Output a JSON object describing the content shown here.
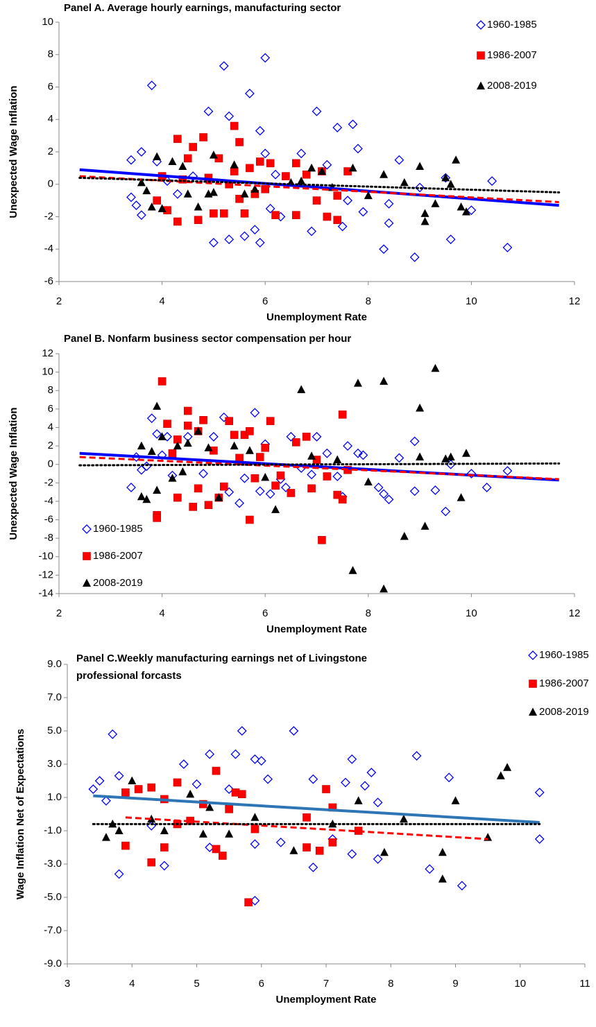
{
  "chart_data": [
    {
      "type": "scatter",
      "title": [
        "Panel A. Average hourly earnings, manufacturing sector"
      ],
      "x_label": "Unemployment Rate",
      "y_label": "Unexpected Wage Inflation",
      "xlim": [
        2,
        12
      ],
      "xticks": [
        2,
        4,
        6,
        8,
        10,
        12
      ],
      "ylim": [
        -6,
        10
      ],
      "yticks": [
        -6,
        -4,
        -2,
        0,
        2,
        4,
        6,
        8,
        10
      ],
      "legend_position": "upper right",
      "series": [
        {
          "name": "1960-1985",
          "color": "#0000ff",
          "marker": "diamond-open",
          "x": [
            3.4,
            3.4,
            3.5,
            3.6,
            3.6,
            3.8,
            3.9,
            4.1,
            4.3,
            4.6,
            4.9,
            5.0,
            5.2,
            5.3,
            5.3,
            5.6,
            5.7,
            5.8,
            5.9,
            6.0,
            5.9,
            6.0,
            6.1,
            6.2,
            6.3,
            6.7,
            6.9,
            7.0,
            7.4,
            7.5,
            7.6,
            7.7,
            7.8,
            7.9,
            8.3,
            8.4,
            8.6,
            8.9,
            9.0,
            9.5,
            9.6,
            10.0,
            10.4,
            10.7,
            8.4,
            7.2
          ],
          "y": [
            1.5,
            -0.8,
            -1.3,
            2.0,
            -1.9,
            6.1,
            1.4,
            0.2,
            -0.6,
            0.5,
            4.5,
            -3.6,
            7.3,
            4.2,
            -3.4,
            -3.2,
            5.6,
            -2.8,
            3.3,
            7.8,
            -3.6,
            1.9,
            -1.5,
            0.6,
            -2.0,
            1.9,
            -2.9,
            4.5,
            3.5,
            -2.6,
            -1.0,
            3.7,
            2.2,
            -1.7,
            -4.0,
            -2.4,
            1.5,
            -4.5,
            -0.2,
            0.4,
            -3.4,
            -1.6,
            0.2,
            -3.9,
            -1.2,
            1.2
          ]
        },
        {
          "name": "1986-2007",
          "color": "#ff0000",
          "marker": "square",
          "x": [
            3.9,
            4.0,
            4.1,
            4.3,
            4.3,
            4.5,
            4.6,
            4.7,
            4.8,
            4.9,
            5.0,
            5.1,
            5.2,
            5.4,
            5.4,
            5.5,
            5.5,
            5.6,
            5.7,
            5.8,
            5.9,
            6.0,
            6.1,
            6.2,
            6.4,
            6.6,
            6.6,
            6.8,
            7.0,
            7.1,
            7.2,
            7.4,
            7.4,
            7.6,
            4.4,
            5.3
          ],
          "y": [
            -1.0,
            0.5,
            -1.6,
            2.8,
            -2.3,
            1.6,
            2.3,
            -2.2,
            2.9,
            0.4,
            -1.8,
            1.6,
            -1.8,
            3.6,
            0.8,
            2.6,
            -0.9,
            -1.8,
            1.0,
            -0.6,
            1.4,
            -0.3,
            1.3,
            -1.9,
            0.5,
            1.3,
            -1.9,
            0.6,
            -1.0,
            0.8,
            -2.0,
            -2.2,
            -0.7,
            0.8,
            0.3,
            0.0
          ]
        },
        {
          "name": "2008-2019",
          "color": "#000000",
          "marker": "triangle",
          "x": [
            3.6,
            3.7,
            3.8,
            3.9,
            4.0,
            4.2,
            4.4,
            4.5,
            4.7,
            4.9,
            5.0,
            5.0,
            5.6,
            5.8,
            6.7,
            6.9,
            7.1,
            7.3,
            7.7,
            8.0,
            8.3,
            8.7,
            9.0,
            9.1,
            9.1,
            9.3,
            9.5,
            9.6,
            9.7,
            9.8,
            9.9,
            6.5,
            5.4
          ],
          "y": [
            0.1,
            -0.4,
            -1.4,
            1.7,
            -1.5,
            1.4,
            1.1,
            -0.6,
            -1.4,
            -0.6,
            1.8,
            -0.5,
            -0.6,
            -0.3,
            0.2,
            1.0,
            0.8,
            -0.2,
            1.0,
            -0.7,
            0.6,
            0.1,
            1.1,
            -1.8,
            -2.3,
            -1.2,
            0.4,
            0.0,
            1.5,
            -1.4,
            -1.7,
            0.1,
            1.2
          ]
        }
      ],
      "trendlines": [
        {
          "color": "#0000ff",
          "style": "solid",
          "x": [
            2.4,
            11.7
          ],
          "y": [
            0.9,
            -1.3
          ]
        },
        {
          "color": "#ff0000",
          "style": "dashed",
          "x": [
            2.4,
            11.7
          ],
          "y": [
            0.5,
            -1.1
          ]
        },
        {
          "color": "#000000",
          "style": "dotted",
          "x": [
            2.4,
            11.7
          ],
          "y": [
            0.4,
            -0.5
          ]
        }
      ]
    },
    {
      "type": "scatter",
      "title": [
        "Panel B. Nonfarm business sector compensation per hour"
      ],
      "x_label": "Unemployment Rate",
      "y_label": "Unexpected Wage Inflation",
      "xlim": [
        2,
        12
      ],
      "xticks": [
        2,
        4,
        6,
        8,
        10,
        12
      ],
      "ylim": [
        -14,
        12
      ],
      "yticks": [
        -14,
        -12,
        -10,
        -8,
        -6,
        -4,
        -2,
        0,
        2,
        4,
        6,
        8,
        10,
        12
      ],
      "legend_position": "lower left",
      "series": [
        {
          "name": "1960-1985",
          "color": "#0000ff",
          "marker": "diamond-open",
          "x": [
            3.4,
            3.5,
            3.6,
            3.7,
            3.8,
            3.9,
            4.0,
            4.1,
            4.2,
            4.5,
            4.8,
            5.0,
            5.2,
            5.3,
            5.5,
            5.6,
            5.8,
            5.9,
            6.0,
            6.1,
            6.3,
            6.4,
            6.5,
            6.7,
            6.9,
            7.0,
            7.2,
            7.4,
            7.5,
            7.6,
            7.8,
            7.9,
            8.2,
            8.3,
            8.4,
            8.6,
            8.9,
            8.9,
            9.3,
            9.5,
            9.6,
            10.0,
            10.3,
            10.7
          ],
          "y": [
            -2.5,
            0.8,
            -0.6,
            -0.2,
            5.0,
            3.3,
            1.0,
            3.0,
            -1.2,
            3.0,
            -1.0,
            3.0,
            5.1,
            -3.0,
            -4.2,
            -1.5,
            5.6,
            -2.9,
            2.2,
            -3.2,
            -1.6,
            -2.5,
            3.0,
            -0.4,
            -1.1,
            3.0,
            1.2,
            -1.3,
            -3.5,
            2.0,
            1.2,
            1.0,
            -2.5,
            -3.2,
            -3.8,
            0.7,
            2.5,
            -2.9,
            -2.8,
            -5.1,
            0.0,
            -1.0,
            -2.5,
            -0.7
          ]
        },
        {
          "name": "1986-2007",
          "color": "#ff0000",
          "marker": "square",
          "x": [
            3.9,
            3.9,
            4.0,
            4.1,
            4.2,
            4.3,
            4.3,
            4.5,
            4.5,
            4.6,
            4.7,
            4.7,
            4.8,
            4.9,
            5.0,
            5.1,
            5.2,
            5.3,
            5.4,
            5.5,
            5.6,
            5.7,
            5.7,
            5.8,
            5.9,
            6.0,
            6.1,
            6.2,
            6.3,
            6.5,
            6.6,
            6.8,
            6.9,
            7.0,
            7.1,
            7.2,
            7.4,
            7.5,
            7.5,
            7.6
          ],
          "y": [
            -5.5,
            -5.8,
            9.0,
            4.4,
            1.2,
            2.7,
            -3.6,
            4.2,
            5.8,
            -4.6,
            3.6,
            -2.6,
            4.8,
            -4.4,
            1.5,
            -3.6,
            -2.4,
            4.7,
            3.2,
            0.7,
            3.2,
            -6.0,
            3.6,
            -1.5,
            0.8,
            1.8,
            4.7,
            -2.3,
            -1.2,
            -3.1,
            2.4,
            3.0,
            -2.6,
            0.5,
            -8.2,
            -1.3,
            -3.3,
            5.4,
            -3.8,
            -0.6
          ]
        },
        {
          "name": "2008-2019",
          "color": "#000000",
          "marker": "triangle",
          "x": [
            3.6,
            3.6,
            3.7,
            3.8,
            3.9,
            3.9,
            4.0,
            4.2,
            4.3,
            4.4,
            4.5,
            4.7,
            4.9,
            5.1,
            5.4,
            5.7,
            6.0,
            6.2,
            6.7,
            6.9,
            7.4,
            7.7,
            7.8,
            8.0,
            8.3,
            8.3,
            8.7,
            9.0,
            9.1,
            9.3,
            9.5,
            9.6,
            9.8,
            9.9,
            9.0
          ],
          "y": [
            2.0,
            -3.5,
            -3.8,
            1.4,
            6.3,
            -2.8,
            3.0,
            -1.5,
            2.0,
            -0.8,
            2.3,
            3.6,
            1.8,
            -3.6,
            2.0,
            1.5,
            -1.4,
            -4.9,
            8.1,
            0.9,
            0.5,
            -11.5,
            8.8,
            -1.9,
            9.0,
            -13.5,
            -7.8,
            6.1,
            -6.7,
            10.4,
            0.6,
            0.8,
            -3.6,
            1.2,
            0.8
          ]
        }
      ],
      "trendlines": [
        {
          "color": "#0000ff",
          "style": "solid",
          "x": [
            2.4,
            11.7
          ],
          "y": [
            1.2,
            -1.7
          ]
        },
        {
          "color": "#ff0000",
          "style": "dashed",
          "x": [
            2.4,
            11.7
          ],
          "y": [
            0.8,
            -1.6
          ]
        },
        {
          "color": "#000000",
          "style": "dotted",
          "x": [
            2.4,
            11.7
          ],
          "y": [
            -0.1,
            0.1
          ]
        }
      ]
    },
    {
      "type": "scatter",
      "title": [
        "Panel C.Weekly manufacturing earnings net of Livingstone",
        "professional forcasts"
      ],
      "x_label": "Unemployment Rate",
      "y_label": "Wage Inflation Net of Expectations",
      "xlim": [
        3,
        11
      ],
      "xticks": [
        3,
        4,
        5,
        6,
        7,
        8,
        9,
        10,
        11
      ],
      "ylim": [
        -9,
        9
      ],
      "yticks": [
        {
          "value": -9,
          "label": "-9.0"
        },
        {
          "value": -7,
          "label": "-7.0"
        },
        {
          "value": -5,
          "label": "-5.0"
        },
        {
          "value": -3,
          "label": "-3.0"
        },
        {
          "value": -1,
          "label": "-1.0"
        },
        {
          "value": 1,
          "label": "1.0"
        },
        {
          "value": 3,
          "label": "3.0"
        },
        {
          "value": 5,
          "label": "5.0"
        },
        {
          "value": 7,
          "label": "7.0"
        },
        {
          "value": 9,
          "label": "9.0"
        }
      ],
      "legend_position": "outside upper right",
      "series": [
        {
          "name": "1960-1985",
          "color": "#0000ff",
          "marker": "diamond-open",
          "x": [
            3.4,
            3.5,
            3.6,
            3.7,
            3.8,
            3.8,
            4.3,
            4.5,
            4.8,
            5.0,
            5.2,
            5.2,
            5.5,
            5.6,
            5.7,
            5.9,
            5.9,
            6.0,
            6.1,
            6.3,
            6.5,
            6.8,
            6.8,
            7.1,
            7.3,
            7.4,
            7.4,
            7.6,
            7.7,
            7.8,
            7.8,
            8.4,
            8.6,
            8.9,
            9.1,
            10.3,
            10.3,
            5.9
          ],
          "y": [
            1.5,
            2.0,
            0.8,
            4.8,
            -3.6,
            2.3,
            -0.7,
            -3.1,
            3.0,
            1.8,
            -2.0,
            3.6,
            1.5,
            3.6,
            5.0,
            -1.8,
            3.3,
            3.2,
            2.1,
            -1.7,
            5.0,
            2.1,
            -3.2,
            -1.5,
            1.9,
            3.3,
            -2.4,
            1.7,
            2.5,
            0.7,
            -2.7,
            3.5,
            -3.3,
            2.2,
            -4.3,
            1.3,
            -1.5,
            -5.2
          ]
        },
        {
          "name": "1986-2007",
          "color": "#ff0000",
          "marker": "square",
          "x": [
            3.9,
            3.9,
            4.1,
            4.3,
            4.3,
            4.5,
            4.5,
            4.7,
            4.7,
            4.9,
            5.1,
            5.3,
            5.3,
            5.4,
            5.5,
            5.6,
            5.7,
            5.8,
            5.9,
            6.7,
            6.7,
            6.9,
            7.0,
            7.1,
            7.1,
            7.5
          ],
          "y": [
            1.3,
            -1.9,
            1.5,
            1.6,
            -2.9,
            0.9,
            -2.0,
            1.9,
            -0.6,
            -0.4,
            0.6,
            2.6,
            -2.1,
            -2.5,
            0.3,
            1.3,
            1.2,
            -5.3,
            -0.9,
            -0.2,
            -2.0,
            -2.2,
            1.5,
            0.4,
            -1.7,
            -1.0
          ]
        },
        {
          "name": "2008-2019",
          "color": "#000000",
          "marker": "triangle",
          "x": [
            3.6,
            3.7,
            3.8,
            4.0,
            4.3,
            4.5,
            4.9,
            5.1,
            5.2,
            5.5,
            5.9,
            6.5,
            7.1,
            7.5,
            7.9,
            8.2,
            8.8,
            8.8,
            9.0,
            9.5,
            9.7,
            9.8
          ],
          "y": [
            -1.4,
            -0.6,
            -1.0,
            2.0,
            -0.3,
            -1.0,
            1.2,
            -1.2,
            0.4,
            -1.2,
            -0.2,
            -2.2,
            -0.6,
            0.8,
            -2.3,
            -0.3,
            -3.9,
            -2.3,
            0.8,
            -1.4,
            2.3,
            2.8
          ]
        }
      ],
      "trendlines": [
        {
          "color": "#2e75b6",
          "style": "solid",
          "x": [
            3.4,
            10.3
          ],
          "y": [
            1.1,
            -0.5
          ]
        },
        {
          "color": "#ff0000",
          "style": "dashed",
          "x": [
            3.9,
            9.5
          ],
          "y": [
            -0.2,
            -1.5
          ]
        },
        {
          "color": "#000000",
          "style": "dotted",
          "x": [
            3.4,
            10.3
          ],
          "y": [
            -0.6,
            -0.6
          ]
        }
      ]
    }
  ]
}
